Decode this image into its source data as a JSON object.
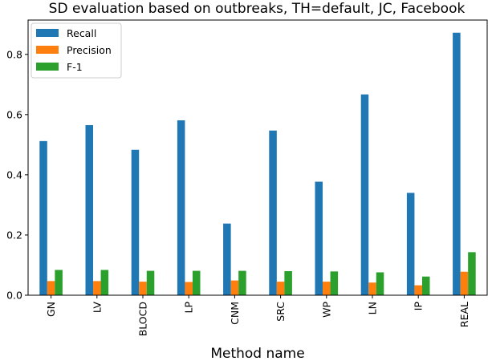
{
  "chart_data": {
    "type": "bar",
    "title": "SD evaluation based on outbreaks, TH=default, JC, Facebook",
    "xlabel": "Method name",
    "ylabel": "",
    "categories": [
      "GN",
      "LV",
      "BLOCD",
      "LP",
      "CNM",
      "SRC",
      "WP",
      "LN",
      "IP",
      "REAL"
    ],
    "series": [
      {
        "name": "Recall",
        "color": "#1f77b4",
        "values": [
          0.512,
          0.565,
          0.483,
          0.581,
          0.238,
          0.547,
          0.377,
          0.667,
          0.34,
          0.872
        ]
      },
      {
        "name": "Precision",
        "color": "#ff7f0e",
        "values": [
          0.047,
          0.047,
          0.045,
          0.044,
          0.049,
          0.045,
          0.045,
          0.042,
          0.033,
          0.078
        ]
      },
      {
        "name": "F-1",
        "color": "#2ca02c",
        "values": [
          0.084,
          0.084,
          0.081,
          0.081,
          0.081,
          0.08,
          0.079,
          0.076,
          0.062,
          0.143
        ]
      }
    ],
    "ylim": [
      0,
      0.914
    ],
    "yticks": [
      0.0,
      0.2,
      0.4,
      0.6,
      0.8
    ],
    "ytick_labels": [
      "0.0",
      "0.2",
      "0.4",
      "0.6",
      "0.8"
    ],
    "grid": false,
    "legend_position": "top-left"
  }
}
